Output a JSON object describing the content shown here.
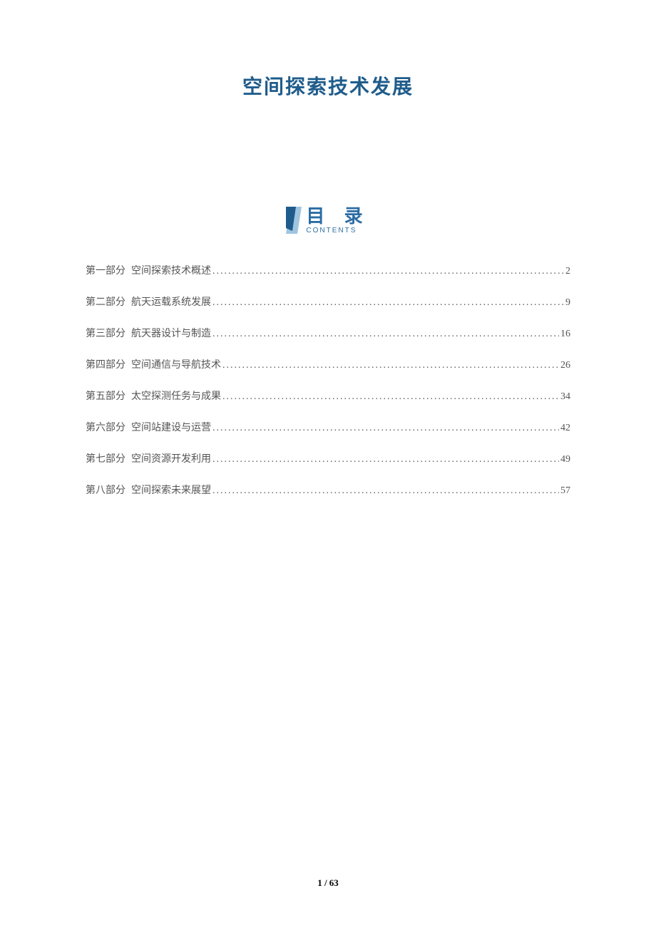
{
  "document": {
    "title": "空间探索技术发展",
    "title_color": "#1f5c8b",
    "title_fontsize": 28
  },
  "toc_header": {
    "label_cn": "目 录",
    "label_en": "CONTENTS",
    "label_color": "#2b6ca3",
    "label_cn_fontsize": 26,
    "label_en_fontsize": 10,
    "icon_fill_dark": "#1f5c8b",
    "icon_fill_light": "#9fc5e0"
  },
  "toc": {
    "entry_fontsize": 14,
    "text_color": "#555555",
    "dot_color": "#555555",
    "entries": [
      {
        "part": "第一部分",
        "title": "空间探索技术概述",
        "page": "2"
      },
      {
        "part": "第二部分",
        "title": "航天运载系统发展",
        "page": "9"
      },
      {
        "part": "第三部分",
        "title": "航天器设计与制造",
        "page": "16"
      },
      {
        "part": "第四部分",
        "title": "空间通信与导航技术",
        "page": "26"
      },
      {
        "part": "第五部分",
        "title": "太空探测任务与成果",
        "page": "34"
      },
      {
        "part": "第六部分",
        "title": "空间站建设与运营",
        "page": "42"
      },
      {
        "part": "第七部分",
        "title": "空间资源开发利用",
        "page": "49"
      },
      {
        "part": "第八部分",
        "title": "空间探索未来展望",
        "page": "57"
      }
    ]
  },
  "footer": {
    "text": "1 / 63",
    "color": "#000000",
    "fontsize": 13
  },
  "page": {
    "background": "#ffffff"
  }
}
